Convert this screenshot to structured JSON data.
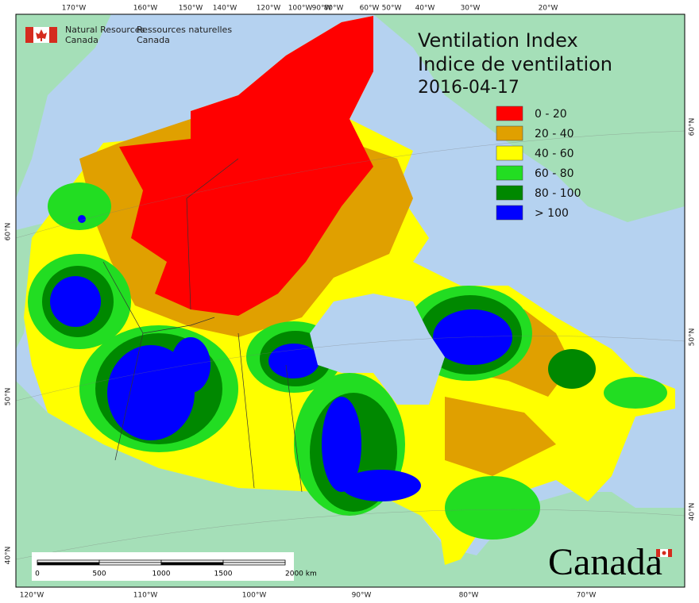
{
  "agency": {
    "en": [
      "Natural Resources",
      "Canada"
    ],
    "fr": [
      "Ressources naturelles",
      "Canada"
    ]
  },
  "title": [
    "Ventilation Index",
    "Indice de ventilation",
    "2016-04-17"
  ],
  "legend": [
    {
      "label": "0 - 20",
      "color": "#ff0000"
    },
    {
      "label": "20 - 40",
      "color": "#e0a000"
    },
    {
      "label": "40 - 60",
      "color": "#ffff00"
    },
    {
      "label": "60 - 80",
      "color": "#22dd22"
    },
    {
      "label": "80 - 100",
      "color": "#008800"
    },
    {
      "label": "> 100",
      "color": "#0000ff"
    }
  ],
  "top_longitudes": [
    "170°W",
    "160°W",
    "150°W",
    "140°W",
    "120°W",
    "100°W",
    "90°W",
    "80°W",
    "60°W",
    "50°W",
    "40°W",
    "30°W",
    "20°W"
  ],
  "bottom_longitudes": [
    "120°W",
    "110°W",
    "100°W",
    "90°W",
    "80°W",
    "70°W"
  ],
  "left_latitudes": [
    "60°N",
    "50°N",
    "40°N"
  ],
  "right_latitudes": [
    "60°N",
    "50°N",
    "40°N"
  ],
  "scale_bar": [
    "0",
    "500",
    "1000",
    "1500",
    "2000 km"
  ],
  "wordmark": "Canada"
}
